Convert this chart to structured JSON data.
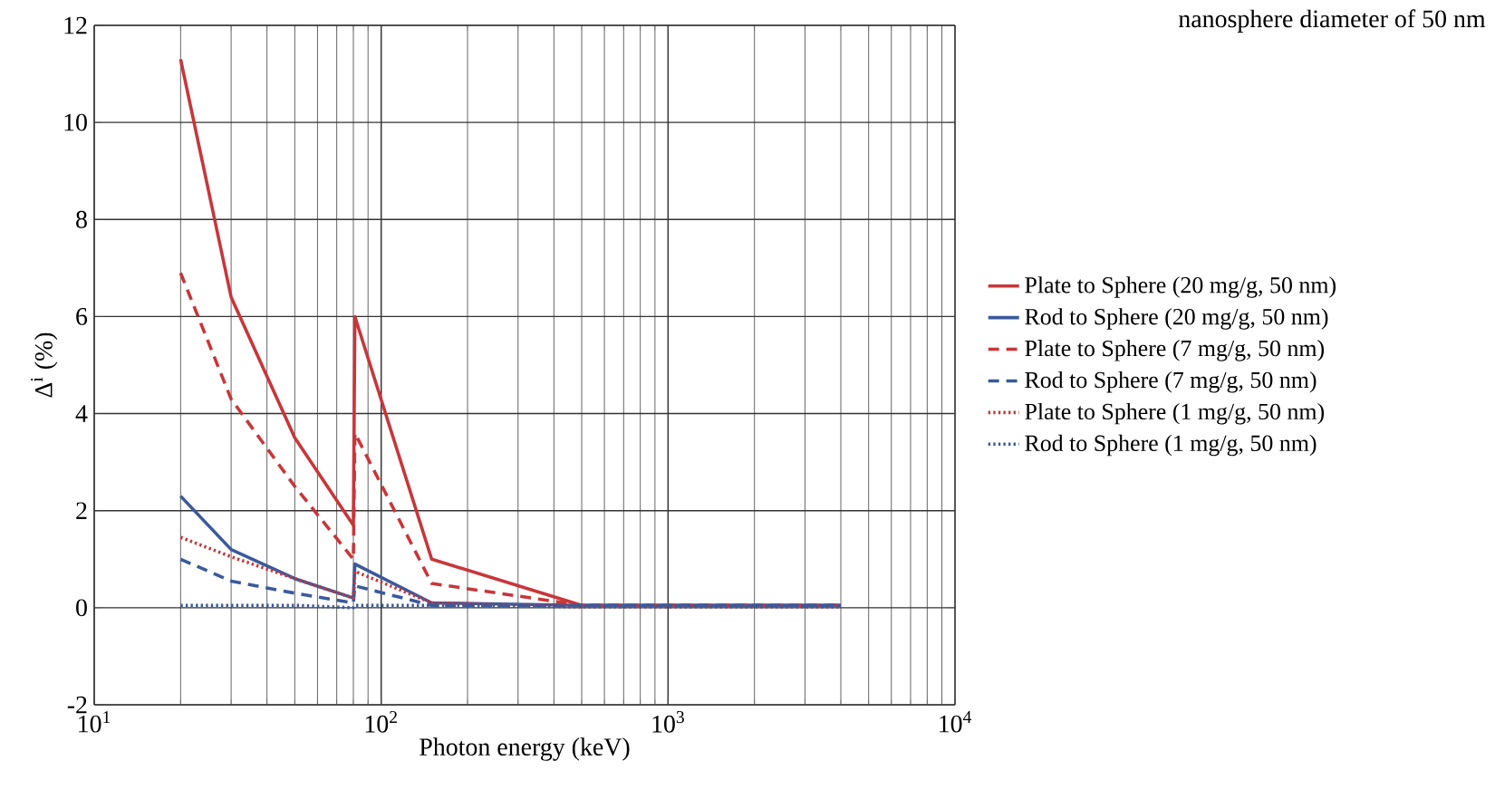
{
  "chart_data": {
    "type": "line",
    "annotations": [
      "nanosphere diameter of 50 nm"
    ],
    "xlabel": "Photon energy (keV)",
    "ylabel": "Δ$^{i}$ (%)",
    "log": "x",
    "xlim": [
      10,
      10000
    ],
    "ylim": [
      -2,
      12
    ],
    "xticks": [
      {
        "value": 10,
        "label": "10$^{1}$"
      },
      {
        "value": 100,
        "label": "10$^{2}$"
      },
      {
        "value": 1000,
        "label": "10$^{3}$"
      },
      {
        "value": 10000,
        "label": "10$^{4}$"
      }
    ],
    "yticks": [
      -2,
      0,
      2,
      4,
      6,
      8,
      10,
      12
    ],
    "grid": true,
    "legend": "right",
    "marker": "none",
    "x": [
      20,
      30,
      50,
      80,
      81,
      150,
      500,
      4000
    ],
    "series": [
      {
        "name": "Plate to Sphere (20 mg/g, 50 nm)",
        "color": "#c8363a",
        "line_style": "solid",
        "values": [
          11.3,
          6.4,
          3.5,
          1.7,
          6.0,
          1.0,
          0.05,
          0.05
        ]
      },
      {
        "name": "Rod to Sphere (20 mg/g, 50 nm)",
        "color": "#3a5a9c",
        "line_style": "solid",
        "values": [
          2.3,
          1.2,
          0.6,
          0.2,
          0.9,
          0.1,
          0.05,
          0.05
        ]
      },
      {
        "name": "Plate to Sphere (7 mg/g, 50 nm)",
        "color": "#c8363a",
        "line_style": "dashed",
        "values": [
          6.9,
          4.3,
          2.5,
          1.0,
          3.6,
          0.5,
          0.05,
          0.05
        ]
      },
      {
        "name": "Rod to Sphere (7 mg/g, 50 nm)",
        "color": "#3a5a9c",
        "line_style": "dashed",
        "values": [
          1.0,
          0.55,
          0.3,
          0.1,
          0.45,
          0.05,
          0.05,
          0.05
        ]
      },
      {
        "name": "Plate to Sphere (1 mg/g, 50 nm)",
        "color": "#c8363a",
        "line_style": "dotted",
        "values": [
          1.45,
          1.05,
          0.6,
          0.2,
          0.75,
          0.1,
          0.02,
          0.02
        ]
      },
      {
        "name": "Rod to Sphere (1 mg/g, 50 nm)",
        "color": "#3a5a9c",
        "line_style": "dotted",
        "values": [
          0.05,
          0.05,
          0.05,
          0.0,
          0.05,
          0.05,
          0.02,
          0.02
        ]
      }
    ]
  }
}
